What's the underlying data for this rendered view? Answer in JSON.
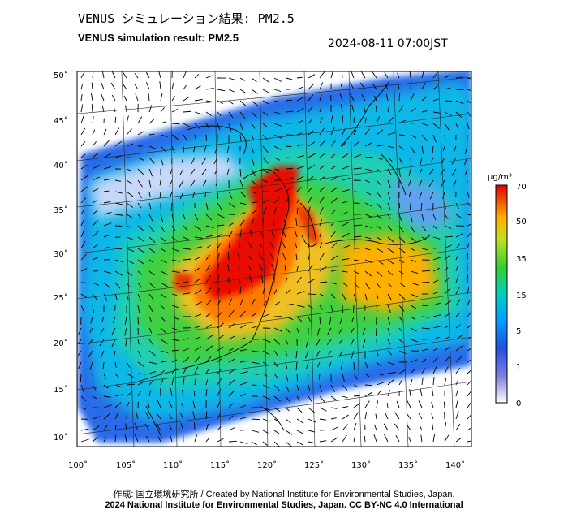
{
  "title_jp": "VENUS シミュレーション結果: PM2.5",
  "title_en": "VENUS simulation result: PM2.5",
  "timestamp": "2024-08-11 07:00JST",
  "lon_ticks": [
    "100˚",
    "105˚",
    "110˚",
    "115˚",
    "120˚",
    "125˚",
    "130˚",
    "135˚",
    "140˚"
  ],
  "lat_ticks": [
    "50˚",
    "45˚",
    "40˚",
    "35˚",
    "30˚",
    "25˚",
    "20˚",
    "15˚",
    "10˚"
  ],
  "colorbar": {
    "unit": "μg/m³",
    "labels": [
      "70",
      "50",
      "35",
      "15",
      "5",
      "1",
      "0"
    ]
  },
  "credit_line1": "作成: 国立環境研究所 / Created by National Institute for Environmental Studies, Japan.",
  "credit_line2": "2024 National Institute for Environmental Studies, Japan. CC BY-NC 4.0 International"
}
